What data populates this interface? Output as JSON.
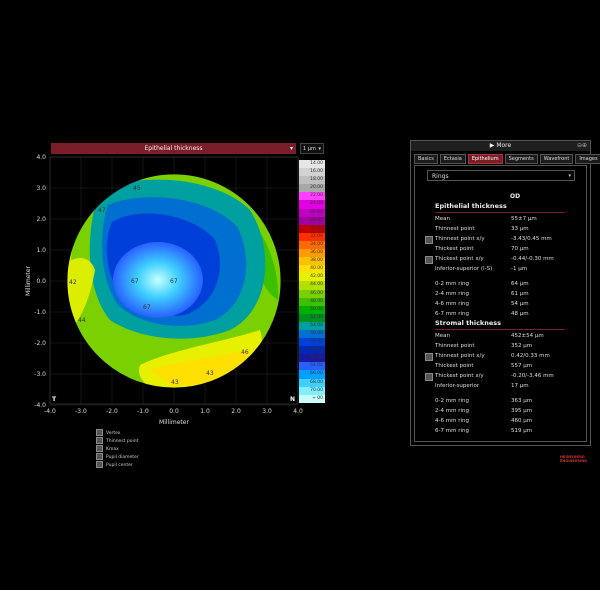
{
  "map": {
    "title": "Epithelial thickness",
    "unit": "1 µm",
    "x_axis_label": "Millimeter",
    "y_axis_label": "Millimeter",
    "x_ticks": [
      "-4.0",
      "-3.0",
      "-2.0",
      "-1.0",
      "0.0",
      "1.0",
      "2.0",
      "3.0",
      "4.0"
    ],
    "y_ticks": [
      "4.0",
      "3.0",
      "2.0",
      "1.0",
      "0.0",
      "-1.0",
      "-2.0",
      "-3.0",
      "-4.0"
    ],
    "corner_left": "T",
    "corner_right": "N",
    "values": [
      "45",
      "47",
      "42",
      "44",
      "67",
      "67",
      "67",
      "46",
      "43",
      "43"
    ]
  },
  "scale": {
    "labels": [
      "14.00",
      "16.00",
      "18.00",
      "20.00",
      "22.00",
      "24.00",
      "26.00",
      "28.00",
      "30.00",
      "32.00",
      "34.00",
      "36.00",
      "38.00",
      "40.00",
      "42.00",
      "44.00",
      "46.00",
      "48.00",
      "50.00",
      "52.00",
      "54.00",
      "56.00",
      "58.00",
      "60.00",
      "62.00",
      "64.00",
      "66.00",
      "68.00",
      "70.00",
      "+ 00"
    ],
    "colors": [
      "#e6e6e6",
      "#d2d2d2",
      "#bebebe",
      "#a8a8a8",
      "#ff40ff",
      "#e000e0",
      "#c000c0",
      "#a000a0",
      "#c00000",
      "#ff3000",
      "#ff6a00",
      "#ff9a00",
      "#ffc000",
      "#ffe000",
      "#e6f000",
      "#b4e000",
      "#7ad000",
      "#3cc000",
      "#00b000",
      "#009020",
      "#00a0a0",
      "#0070d0",
      "#0040d8",
      "#0028b0",
      "#1818a0",
      "#2860ff",
      "#00a0ff",
      "#40d0ff",
      "#80f0ff",
      "#c8ffff"
    ]
  },
  "legend": [
    "Vertex",
    "Thinnest point",
    "Kmax",
    "Pupil diameter",
    "Pupil center"
  ],
  "panel": {
    "header": "More",
    "tabs": [
      "Basics",
      "Ectasia",
      "Epithelium",
      "Segments",
      "Wavefront",
      "Images"
    ],
    "active_tab": "Epithelium",
    "select": "Rings",
    "column": "OD",
    "epithelial": {
      "title": "Epithelial thickness",
      "rows": [
        {
          "label": "Mean",
          "value": "55±7 µm",
          "check": false
        },
        {
          "label": "Thinnest point",
          "value": "33 µm",
          "check": false
        },
        {
          "label": "Thinnest point x/y",
          "value": "-3.43/0.45 mm",
          "check": true
        },
        {
          "label": "Thickest point",
          "value": "70 µm",
          "check": false
        },
        {
          "label": "Thickest point x/y",
          "value": "-0.44/-0.30 mm",
          "check": true
        },
        {
          "label": "Inferior-superior (I-S)",
          "value": "-1 µm",
          "check": false
        },
        {
          "label": "0-2 mm ring",
          "value": "64 µm",
          "check": false
        },
        {
          "label": "2-4 mm ring",
          "value": "61 µm",
          "check": false
        },
        {
          "label": "4-6 mm ring",
          "value": "54 µm",
          "check": false
        },
        {
          "label": "6-7 mm ring",
          "value": "48 µm",
          "check": false
        }
      ]
    },
    "stromal": {
      "title": "Stromal thickness",
      "rows": [
        {
          "label": "Mean",
          "value": "452±54 µm",
          "check": false
        },
        {
          "label": "Thinnest point",
          "value": "352 µm",
          "check": false
        },
        {
          "label": "Thinnest point x/y",
          "value": "0.42/0.33 mm",
          "check": true
        },
        {
          "label": "Thickest point",
          "value": "557 µm",
          "check": false
        },
        {
          "label": "Thickest point x/y",
          "value": "-0.20/-3.46 mm",
          "check": true
        },
        {
          "label": "Inferior-superior",
          "value": "17 µm",
          "check": false
        },
        {
          "label": "0-2 mm ring",
          "value": "363 µm",
          "check": false
        },
        {
          "label": "2-4 mm ring",
          "value": "395 µm",
          "check": false
        },
        {
          "label": "4-6 mm ring",
          "value": "460 µm",
          "check": false
        },
        {
          "label": "6-7 mm ring",
          "value": "519 µm",
          "check": false
        }
      ]
    }
  },
  "logo": [
    "HEIDELBERG",
    "ENGINEERING"
  ]
}
